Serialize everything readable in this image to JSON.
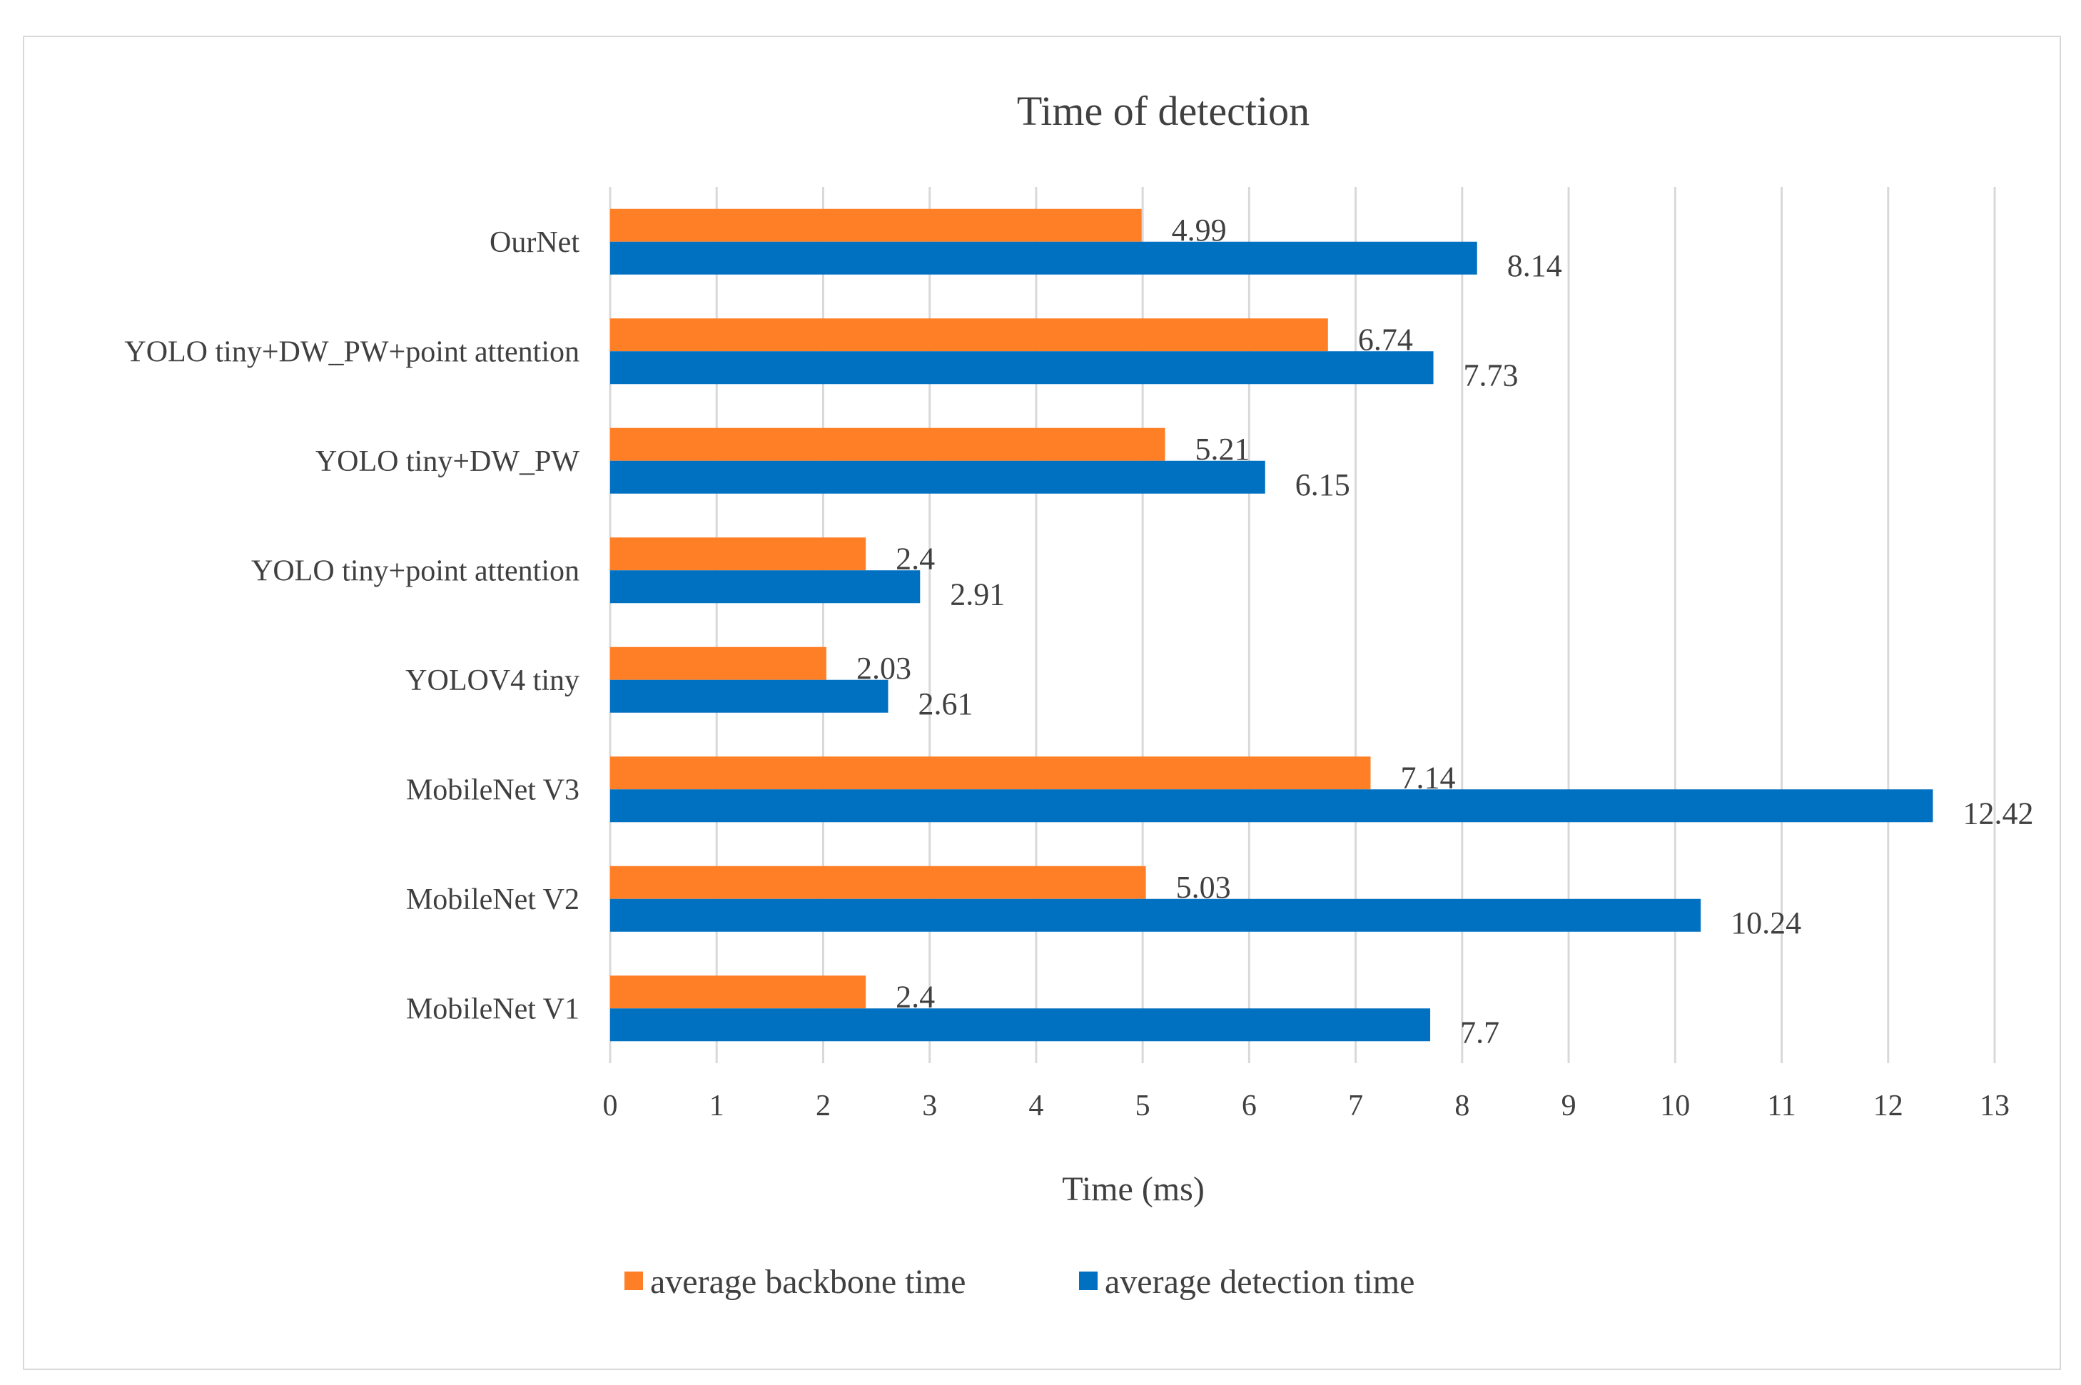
{
  "chart_data": {
    "type": "bar",
    "orientation": "horizontal",
    "title": "Time of detection",
    "xlabel": "Time (ms)",
    "ylabel": "",
    "xlim": [
      0,
      13
    ],
    "ticks": [
      0,
      1,
      2,
      3,
      4,
      5,
      6,
      7,
      8,
      9,
      10,
      11,
      12,
      13
    ],
    "grid": true,
    "legend_position": "bottom",
    "categories": [
      "OurNet",
      "YOLO tiny+DW_PW+point attention",
      "YOLO tiny+DW_PW",
      "YOLO tiny+point attention",
      "YOLOV4 tiny",
      "MobileNet V3",
      "MobileNet V2",
      "MobileNet V1"
    ],
    "series": [
      {
        "name": "average backbone time",
        "color": "#ff7f27",
        "values": [
          4.99,
          6.74,
          5.21,
          2.4,
          2.03,
          7.14,
          5.03,
          2.4
        ],
        "labels": [
          "4.99",
          "6.74",
          "5.21",
          "2.4",
          "2.03",
          "7.14",
          "5.03",
          "2.4"
        ]
      },
      {
        "name": "average detection time",
        "color": "#0070c0",
        "values": [
          8.14,
          7.73,
          6.15,
          2.91,
          2.61,
          12.42,
          10.24,
          7.7
        ],
        "labels": [
          "8.14",
          "7.73",
          "6.15",
          "2.91",
          "2.61",
          "12.42",
          "10.24",
          "7.7"
        ]
      }
    ]
  },
  "colors": {
    "gridline": "#d9d9d9",
    "text": "#404040"
  }
}
